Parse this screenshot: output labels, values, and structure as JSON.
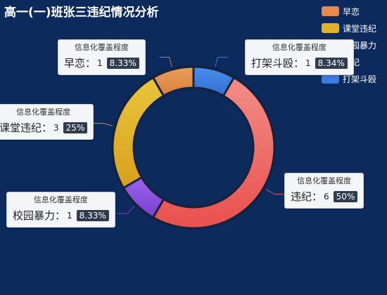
{
  "title": "高一(一)班张三违纪情况分析",
  "colon": "：",
  "chart_data": {
    "type": "pie",
    "variant": "donut",
    "categories": [
      "早恋",
      "课堂违纪",
      "校园暴力",
      "违纪",
      "打架斗殴"
    ],
    "legend_order": [
      "早恋",
      "课堂违纪",
      "校园暴力",
      "违纪",
      "打架斗殴"
    ],
    "slice_order": [
      "打架斗殴",
      "违纪",
      "校园暴力",
      "课堂违纪",
      "早恋"
    ],
    "values": {
      "早恋": 1,
      "课堂违纪": 3,
      "校园暴力": 1,
      "违纪": 6,
      "打架斗殴": 1
    },
    "percents": {
      "早恋": "8.33%",
      "课堂违纪": "25%",
      "校园暴力": "8.33%",
      "违纪": "50%",
      "打架斗殴": "8.34%"
    },
    "colors": {
      "早恋": {
        "legend": "#e8894f",
        "top": "#e7a05c",
        "bottom": "#d9803c"
      },
      "课堂违纪": {
        "legend": "#e0b22a",
        "top": "#e9c53c",
        "bottom": "#d9a01c"
      },
      "校园暴力": {
        "legend": "#8a4be0",
        "top": "#9b63ea",
        "bottom": "#7a3fd2"
      },
      "违纪": {
        "legend": "#f07070",
        "top": "#f38c86",
        "bottom": "#e8504d"
      },
      "打架斗殴": {
        "legend": "#3a7be0",
        "top": "#4c8fea",
        "bottom": "#2e6fd6"
      }
    },
    "label_title": "信息化覆盖程度",
    "legend_position": "top-right"
  }
}
